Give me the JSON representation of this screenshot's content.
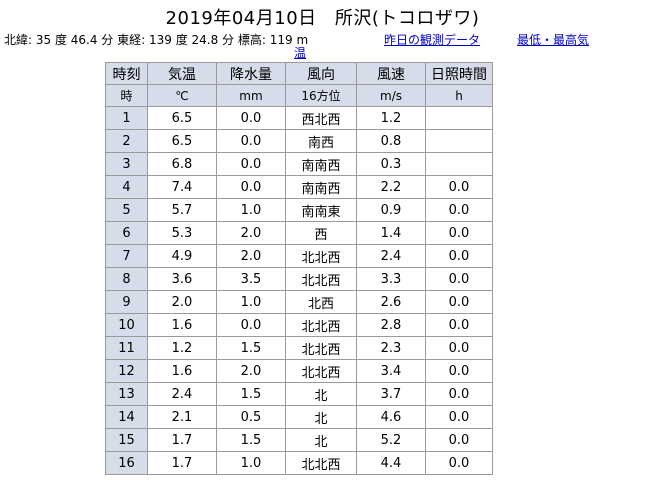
{
  "title": {
    "date": "2019年04月10日",
    "station": "所沢(トコロザワ)"
  },
  "info": {
    "latitude": "北緯: 35 度 46.4 分",
    "longitude": "東経: 139 度 24.8 分",
    "elevation": "標高: 119 m"
  },
  "links": {
    "yesterday": "昨日の観測データ",
    "minmax_part1": "最低・最高気",
    "minmax_part2": "温"
  },
  "table": {
    "headers": [
      "時刻",
      "気温",
      "降水量",
      "風向",
      "風速",
      "日照時間"
    ],
    "units": [
      "時",
      "℃",
      "mm",
      "16方位",
      "m/s",
      "h"
    ],
    "rows": [
      [
        "1",
        "6.5",
        "0.0",
        "西北西",
        "1.2",
        ""
      ],
      [
        "2",
        "6.5",
        "0.0",
        "南西",
        "0.8",
        ""
      ],
      [
        "3",
        "6.8",
        "0.0",
        "南南西",
        "0.3",
        ""
      ],
      [
        "4",
        "7.4",
        "0.0",
        "南南西",
        "2.2",
        "0.0"
      ],
      [
        "5",
        "5.7",
        "1.0",
        "南南東",
        "0.9",
        "0.0"
      ],
      [
        "6",
        "5.3",
        "2.0",
        "西",
        "1.4",
        "0.0"
      ],
      [
        "7",
        "4.9",
        "2.0",
        "北北西",
        "2.4",
        "0.0"
      ],
      [
        "8",
        "3.6",
        "3.5",
        "北北西",
        "3.3",
        "0.0"
      ],
      [
        "9",
        "2.0",
        "1.0",
        "北西",
        "2.6",
        "0.0"
      ],
      [
        "10",
        "1.6",
        "0.0",
        "北北西",
        "2.8",
        "0.0"
      ],
      [
        "11",
        "1.2",
        "1.5",
        "北北西",
        "2.3",
        "0.0"
      ],
      [
        "12",
        "1.6",
        "2.0",
        "北北西",
        "3.4",
        "0.0"
      ],
      [
        "13",
        "2.4",
        "1.5",
        "北",
        "3.7",
        "0.0"
      ],
      [
        "14",
        "2.1",
        "0.5",
        "北",
        "4.6",
        "0.0"
      ],
      [
        "15",
        "1.7",
        "1.5",
        "北",
        "5.2",
        "0.0"
      ],
      [
        "16",
        "1.7",
        "1.0",
        "北北西",
        "4.4",
        "0.0"
      ]
    ]
  }
}
